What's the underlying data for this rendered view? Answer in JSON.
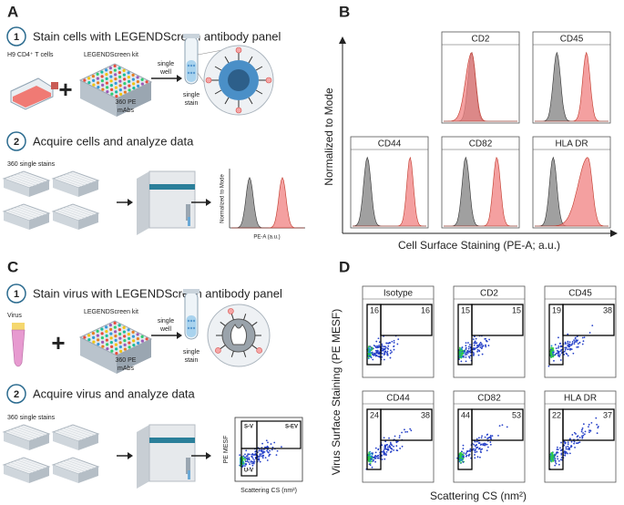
{
  "panel_a": {
    "label": "A",
    "step1": {
      "number": "1",
      "text": "Stain cells with LEGENDScreen antibody panel"
    },
    "cells": "H9 CD4⁺ T cells",
    "kit": "LEGENDScreen kit",
    "mabs": [
      "360 PE",
      "mAbs"
    ],
    "arrow": [
      "single",
      "well"
    ],
    "tube": [
      "single",
      "stain"
    ],
    "step2": {
      "number": "2",
      "text": "Acquire cells and analyze data"
    },
    "stains": "360 single stains",
    "plot_y": "Normalized to Mode",
    "plot_x": "PE-A (a.u.)"
  },
  "panel_b": {
    "label": "B",
    "y_label": "Normalized to Mode",
    "x_label": "Cell Surface Staining (PE-A; a.u.)",
    "plots": [
      "CD2",
      "CD45",
      "CD44",
      "CD82",
      "HLA DR"
    ]
  },
  "panel_c": {
    "label": "C",
    "step1": {
      "number": "1",
      "text": "Stain virus with LEGENDScreen antibody panel"
    },
    "virus": "Virus",
    "kit": "LEGENDScreen kit",
    "mabs": [
      "360 PE",
      "mAbs"
    ],
    "arrow": [
      "single",
      "well"
    ],
    "tube": [
      "single",
      "stain"
    ],
    "step2": {
      "number": "2",
      "text": "Acquire virus and analyze data"
    },
    "stains": "360 single stains",
    "gates": [
      "S-V",
      "S-EV",
      "U-V"
    ],
    "plot_y": "PE MESF",
    "plot_x": "Scattering CS (nm²)"
  },
  "panel_d": {
    "label": "D",
    "y_label": "Virus Surface Staining (PE MESF)",
    "x_label": "Scattering CS (nm²)",
    "plots": [
      {
        "name": "Isotype",
        "left": 16,
        "right": 16
      },
      {
        "name": "CD2",
        "left": 15,
        "right": 15
      },
      {
        "name": "CD45",
        "left": 19,
        "right": 38
      },
      {
        "name": "CD44",
        "left": 24,
        "right": 38
      },
      {
        "name": "CD82",
        "left": 44,
        "right": 53
      },
      {
        "name": "HLA DR",
        "left": 22,
        "right": 37
      }
    ]
  }
}
